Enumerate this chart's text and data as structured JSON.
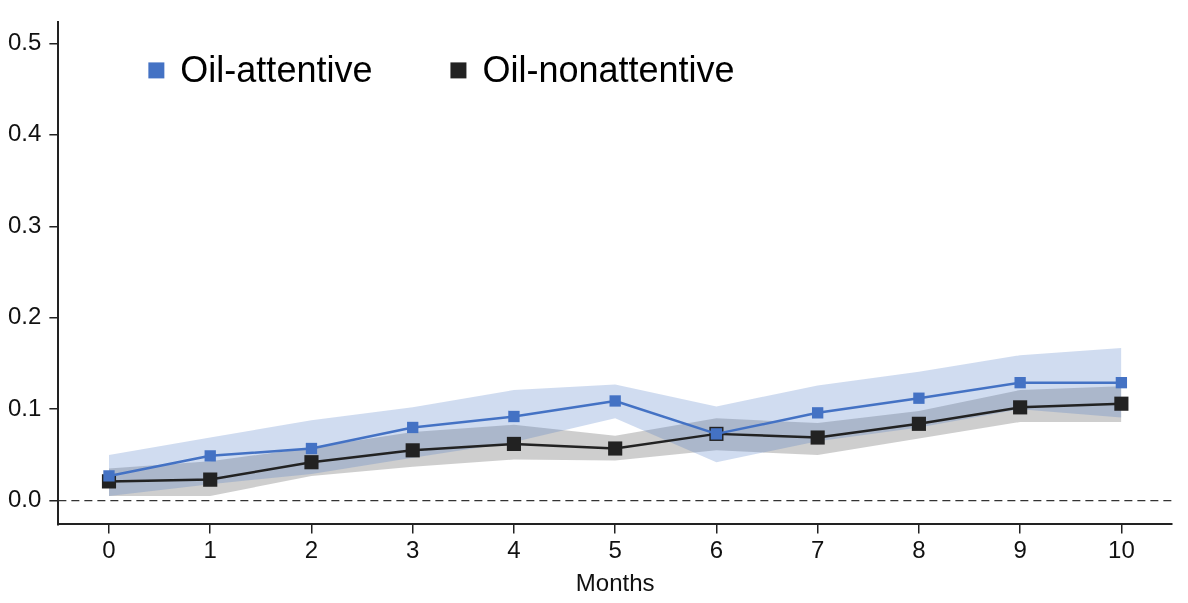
{
  "chart_data": {
    "type": "line",
    "xlabel": "Months",
    "x": [
      0,
      1,
      2,
      3,
      4,
      5,
      6,
      7,
      8,
      9,
      10
    ],
    "xlim": [
      -0.5,
      10.5
    ],
    "xticks": [
      0,
      1,
      2,
      3,
      4,
      5,
      6,
      7,
      8,
      9,
      10
    ],
    "ylim": [
      -0.026,
      0.523
    ],
    "yticks": [
      {
        "value": 0,
        "label": "0.0"
      },
      0.1,
      0.2,
      0.3,
      0.4,
      0.5
    ],
    "series": [
      {
        "name": "Oil-attentive",
        "color": "#4472c4",
        "values": [
          0.027,
          0.049,
          0.057,
          0.08,
          0.092,
          0.109,
          0.073,
          0.096,
          0.112,
          0.129,
          0.129
        ],
        "lower": [
          0.005,
          0.018,
          0.029,
          0.047,
          0.064,
          0.09,
          0.042,
          0.065,
          0.08,
          0.1,
          0.091
        ],
        "upper": [
          0.05,
          0.069,
          0.088,
          0.102,
          0.121,
          0.127,
          0.103,
          0.126,
          0.141,
          0.159,
          0.167
        ]
      },
      {
        "name": "Oil-nonattentive",
        "color": "#222222",
        "values": [
          0.021,
          0.023,
          0.042,
          0.055,
          0.062,
          0.057,
          0.073,
          0.069,
          0.084,
          0.102,
          0.106
        ],
        "lower": [
          0.005,
          0.005,
          0.027,
          0.037,
          0.045,
          0.044,
          0.055,
          0.05,
          0.068,
          0.086,
          0.086
        ],
        "upper": [
          0.035,
          0.043,
          0.058,
          0.075,
          0.083,
          0.071,
          0.09,
          0.085,
          0.098,
          0.121,
          0.125
        ]
      }
    ],
    "ref_lines": [
      {
        "axis": "y",
        "value": 0,
        "line_style": "dashed",
        "color": "#333333"
      }
    ],
    "marker": "square",
    "line_style": "solid",
    "grid": false,
    "legend": "top left"
  }
}
